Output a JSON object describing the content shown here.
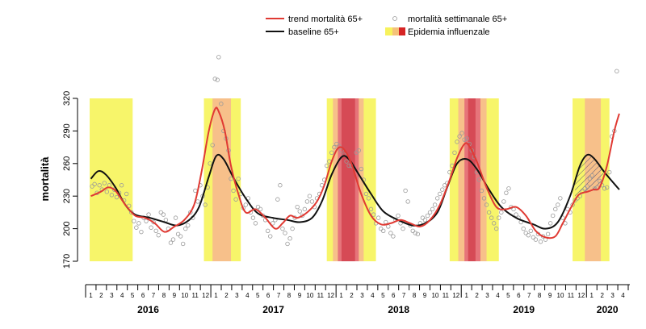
{
  "chart_data": {
    "type": "line",
    "ylabel": "mortalità",
    "ylim": [
      170,
      320
    ],
    "yticks": [
      170,
      200,
      230,
      260,
      290,
      320
    ],
    "x_axis": {
      "start": "2015-12",
      "months": [
        "1",
        "2",
        "3",
        "4",
        "5",
        "6",
        "7",
        "8",
        "9",
        "10",
        "11",
        "12"
      ],
      "years": [
        "2016",
        "2017",
        "2018",
        "2019",
        "2020"
      ],
      "last_partial_months": [
        "1",
        "2",
        "3",
        "4"
      ]
    },
    "legend": {
      "position": "top",
      "entries": [
        {
          "key": "trend",
          "label": "trend mortalità 65+",
          "color": "#e03a33",
          "kind": "line"
        },
        {
          "key": "obs",
          "label": "mortalità settimanale 65+",
          "color": "#9a9a9a",
          "kind": "circle"
        },
        {
          "key": "baseline",
          "label": "baseline 65+",
          "color": "#111111",
          "kind": "line"
        },
        {
          "key": "epidemic",
          "label": "Epidemia influenzale",
          "colors": [
            "#f7f25c",
            "#f5c27a",
            "#d62424"
          ],
          "kind": "swatch"
        }
      ]
    },
    "colors": {
      "trend": "#e03a33",
      "baseline": "#111111",
      "points": "#9a9a9a",
      "epi_low": "#f7f56a",
      "epi_mid": "#f7c08a",
      "epi_high": "#e6747a",
      "epi_peak": "#d64a55",
      "hatch": "#555577"
    },
    "epidemic_periods": [
      {
        "season": "2015-16",
        "yellow": [
          2015.95,
          2016.3
        ]
      },
      {
        "season": "2016-17",
        "yellow": [
          2016.88,
          2017.18
        ],
        "orange": [
          2016.95,
          2017.1
        ]
      },
      {
        "season": "2017-18",
        "yellow": [
          2017.88,
          2018.28
        ],
        "orange": [
          2017.93,
          2018.18
        ],
        "red": [
          2017.97,
          2018.14
        ],
        "peak": [
          2018.0,
          2018.11
        ]
      },
      {
        "season": "2018-19",
        "yellow": [
          2018.88,
          2019.28
        ],
        "orange": [
          2018.95,
          2019.18
        ],
        "red": [
          2019.0,
          2019.13
        ],
        "peak": [
          2019.03,
          2019.09
        ]
      },
      {
        "season": "2019-20",
        "yellow": [
          2019.88,
          2020.18
        ],
        "orange": [
          2019.98,
          2020.11
        ]
      }
    ],
    "series": [
      {
        "name": "trend mortalità 65+",
        "key": "trend",
        "x": [
          2015.96,
          2016.04,
          2016.1,
          2016.16,
          2016.24,
          2016.32,
          2016.4,
          2016.48,
          2016.56,
          2016.64,
          2016.72,
          2016.8,
          2016.86,
          2016.92,
          2016.97,
          2017.0,
          2017.05,
          2017.1,
          2017.16,
          2017.22,
          2017.3,
          2017.38,
          2017.46,
          2017.52,
          2017.58,
          2017.64,
          2017.72,
          2017.8,
          2017.86,
          2017.92,
          2017.97,
          2018.02,
          2018.08,
          2018.16,
          2018.24,
          2018.32,
          2018.4,
          2018.48,
          2018.56,
          2018.64,
          2018.72,
          2018.8,
          2018.88,
          2018.94,
          2019.0,
          2019.04,
          2019.1,
          2019.18,
          2019.26,
          2019.34,
          2019.42,
          2019.5,
          2019.58,
          2019.66,
          2019.74,
          2019.8,
          2019.86,
          2019.92,
          2019.96,
          2020.0,
          2020.05,
          2020.1,
          2020.16,
          2020.22,
          2020.26
        ],
        "y": [
          230,
          234,
          238,
          235,
          222,
          212,
          210,
          205,
          197,
          202,
          208,
          222,
          252,
          290,
          310,
          308,
          290,
          258,
          232,
          215,
          218,
          210,
          200,
          205,
          212,
          210,
          215,
          225,
          240,
          262,
          274,
          273,
          260,
          232,
          212,
          204,
          205,
          208,
          205,
          202,
          208,
          222,
          245,
          265,
          278,
          276,
          262,
          238,
          220,
          218,
          220,
          212,
          198,
          192,
          193,
          205,
          218,
          230,
          233,
          234,
          236,
          238,
          258,
          290,
          306
        ]
      },
      {
        "name": "baseline 65+",
        "key": "baseline",
        "x": [
          2015.96,
          2016.02,
          2016.08,
          2016.16,
          2016.24,
          2016.32,
          2016.44,
          2016.56,
          2016.66,
          2016.76,
          2016.84,
          2016.92,
          2016.98,
          2017.04,
          2017.12,
          2017.22,
          2017.32,
          2017.44,
          2017.56,
          2017.66,
          2017.76,
          2017.84,
          2017.92,
          2018.0,
          2018.06,
          2018.14,
          2018.24,
          2018.34,
          2018.46,
          2018.58,
          2018.68,
          2018.78,
          2018.86,
          2018.94,
          2019.02,
          2019.1,
          2019.2,
          2019.3,
          2019.42,
          2019.56,
          2019.66,
          2019.76,
          2019.86,
          2019.94,
          2020.0,
          2020.06,
          2020.14,
          2020.26
        ],
        "y": [
          246,
          253,
          250,
          238,
          222,
          213,
          210,
          206,
          203,
          208,
          220,
          248,
          267,
          264,
          247,
          228,
          214,
          210,
          208,
          206,
          210,
          225,
          250,
          266,
          264,
          250,
          232,
          216,
          208,
          203,
          205,
          215,
          238,
          260,
          264,
          255,
          236,
          220,
          210,
          204,
          200,
          206,
          230,
          258,
          268,
          264,
          252,
          236
        ]
      }
    ],
    "weekly_observations": {
      "name": "mortalità settimanale 65+",
      "points": [
        [
          2015.97,
          239
        ],
        [
          2015.99,
          241
        ],
        [
          2016.01,
          233
        ],
        [
          2016.03,
          240
        ],
        [
          2016.05,
          236
        ],
        [
          2016.07,
          242
        ],
        [
          2016.09,
          234
        ],
        [
          2016.11,
          240
        ],
        [
          2016.13,
          231
        ],
        [
          2016.15,
          236
        ],
        [
          2016.17,
          229
        ],
        [
          2016.19,
          233
        ],
        [
          2016.21,
          240
        ],
        [
          2016.23,
          226
        ],
        [
          2016.25,
          232
        ],
        [
          2016.27,
          221
        ],
        [
          2016.29,
          215
        ],
        [
          2016.31,
          207
        ],
        [
          2016.33,
          201
        ],
        [
          2016.35,
          205
        ],
        [
          2016.37,
          197
        ],
        [
          2016.39,
          210
        ],
        [
          2016.41,
          207
        ],
        [
          2016.43,
          213
        ],
        [
          2016.45,
          201
        ],
        [
          2016.47,
          206
        ],
        [
          2016.49,
          198
        ],
        [
          2016.51,
          194
        ],
        [
          2016.53,
          215
        ],
        [
          2016.55,
          213
        ],
        [
          2016.57,
          208
        ],
        [
          2016.59,
          200
        ],
        [
          2016.61,
          187
        ],
        [
          2016.63,
          190
        ],
        [
          2016.65,
          210
        ],
        [
          2016.67,
          195
        ],
        [
          2016.69,
          193
        ],
        [
          2016.71,
          186
        ],
        [
          2016.73,
          200
        ],
        [
          2016.75,
          203
        ],
        [
          2016.77,
          215
        ],
        [
          2016.79,
          210
        ],
        [
          2016.81,
          235
        ],
        [
          2016.83,
          225
        ],
        [
          2016.85,
          240
        ],
        [
          2016.87,
          230
        ],
        [
          2016.89,
          222
        ],
        [
          2016.91,
          238
        ],
        [
          2016.93,
          260
        ],
        [
          2016.95,
          277
        ],
        [
          2016.97,
          338
        ],
        [
          2016.99,
          337
        ],
        [
          2017.0,
          358
        ],
        [
          2017.02,
          315
        ],
        [
          2017.04,
          290
        ],
        [
          2017.06,
          283
        ],
        [
          2017.08,
          272
        ],
        [
          2017.1,
          246
        ],
        [
          2017.12,
          235
        ],
        [
          2017.14,
          227
        ],
        [
          2017.16,
          246
        ],
        [
          2017.18,
          232
        ],
        [
          2017.2,
          219
        ],
        [
          2017.22,
          222
        ],
        [
          2017.24,
          228
        ],
        [
          2017.26,
          215
        ],
        [
          2017.28,
          210
        ],
        [
          2017.3,
          205
        ],
        [
          2017.32,
          220
        ],
        [
          2017.34,
          218
        ],
        [
          2017.36,
          212
        ],
        [
          2017.38,
          208
        ],
        [
          2017.4,
          198
        ],
        [
          2017.42,
          193
        ],
        [
          2017.44,
          205
        ],
        [
          2017.46,
          208
        ],
        [
          2017.48,
          227
        ],
        [
          2017.5,
          240
        ],
        [
          2017.52,
          200
        ],
        [
          2017.54,
          196
        ],
        [
          2017.56,
          186
        ],
        [
          2017.58,
          191
        ],
        [
          2017.6,
          200
        ],
        [
          2017.62,
          210
        ],
        [
          2017.64,
          220
        ],
        [
          2017.66,
          216
        ],
        [
          2017.68,
          212
        ],
        [
          2017.7,
          218
        ],
        [
          2017.72,
          225
        ],
        [
          2017.74,
          230
        ],
        [
          2017.76,
          225
        ],
        [
          2017.78,
          220
        ],
        [
          2017.8,
          228
        ],
        [
          2017.82,
          232
        ],
        [
          2017.84,
          240
        ],
        [
          2017.86,
          245
        ],
        [
          2017.88,
          258
        ],
        [
          2017.9,
          262
        ],
        [
          2017.92,
          270
        ],
        [
          2017.94,
          275
        ],
        [
          2017.96,
          278
        ],
        [
          2017.98,
          276
        ],
        [
          2018.0,
          272
        ],
        [
          2018.02,
          268
        ],
        [
          2018.04,
          262
        ],
        [
          2018.06,
          258
        ],
        [
          2018.08,
          258
        ],
        [
          2018.1,
          256
        ],
        [
          2018.12,
          270
        ],
        [
          2018.14,
          272
        ],
        [
          2018.16,
          255
        ],
        [
          2018.18,
          245
        ],
        [
          2018.2,
          232
        ],
        [
          2018.22,
          228
        ],
        [
          2018.24,
          218
        ],
        [
          2018.26,
          213
        ],
        [
          2018.28,
          205
        ],
        [
          2018.3,
          210
        ],
        [
          2018.32,
          200
        ],
        [
          2018.34,
          198
        ],
        [
          2018.36,
          206
        ],
        [
          2018.38,
          202
        ],
        [
          2018.4,
          196
        ],
        [
          2018.42,
          193
        ],
        [
          2018.44,
          208
        ],
        [
          2018.46,
          212
        ],
        [
          2018.48,
          205
        ],
        [
          2018.5,
          200
        ],
        [
          2018.52,
          235
        ],
        [
          2018.54,
          225
        ],
        [
          2018.56,
          203
        ],
        [
          2018.58,
          198
        ],
        [
          2018.6,
          196
        ],
        [
          2018.62,
          195
        ],
        [
          2018.64,
          205
        ],
        [
          2018.66,
          210
        ],
        [
          2018.68,
          208
        ],
        [
          2018.7,
          212
        ],
        [
          2018.72,
          215
        ],
        [
          2018.74,
          218
        ],
        [
          2018.76,
          222
        ],
        [
          2018.78,
          228
        ],
        [
          2018.8,
          232
        ],
        [
          2018.82,
          236
        ],
        [
          2018.84,
          240
        ],
        [
          2018.86,
          242
        ],
        [
          2018.88,
          252
        ],
        [
          2018.9,
          258
        ],
        [
          2018.92,
          270
        ],
        [
          2018.94,
          280
        ],
        [
          2018.96,
          285
        ],
        [
          2018.98,
          288
        ],
        [
          2019.0,
          282
        ],
        [
          2019.02,
          283
        ],
        [
          2019.04,
          278
        ],
        [
          2019.06,
          272
        ],
        [
          2019.08,
          266
        ],
        [
          2019.1,
          252
        ],
        [
          2019.12,
          245
        ],
        [
          2019.14,
          235
        ],
        [
          2019.16,
          228
        ],
        [
          2019.18,
          222
        ],
        [
          2019.2,
          215
        ],
        [
          2019.22,
          210
        ],
        [
          2019.24,
          205
        ],
        [
          2019.26,
          200
        ],
        [
          2019.28,
          210
        ],
        [
          2019.3,
          215
        ],
        [
          2019.32,
          225
        ],
        [
          2019.34,
          233
        ],
        [
          2019.36,
          237
        ],
        [
          2019.38,
          220
        ],
        [
          2019.4,
          218
        ],
        [
          2019.42,
          213
        ],
        [
          2019.44,
          210
        ],
        [
          2019.46,
          206
        ],
        [
          2019.48,
          200
        ],
        [
          2019.5,
          196
        ],
        [
          2019.52,
          194
        ],
        [
          2019.54,
          198
        ],
        [
          2019.56,
          192
        ],
        [
          2019.58,
          190
        ],
        [
          2019.6,
          195
        ],
        [
          2019.62,
          188
        ],
        [
          2019.64,
          193
        ],
        [
          2019.66,
          190
        ],
        [
          2019.68,
          195
        ],
        [
          2019.7,
          205
        ],
        [
          2019.72,
          212
        ],
        [
          2019.74,
          218
        ],
        [
          2019.76,
          222
        ],
        [
          2019.78,
          228
        ],
        [
          2019.8,
          210
        ],
        [
          2019.82,
          205
        ],
        [
          2019.84,
          218
        ],
        [
          2019.86,
          215
        ],
        [
          2019.88,
          222
        ],
        [
          2019.9,
          226
        ],
        [
          2019.92,
          228
        ],
        [
          2019.94,
          230
        ],
        [
          2019.96,
          234
        ],
        [
          2019.98,
          237
        ],
        [
          2020.0,
          239
        ],
        [
          2020.02,
          246
        ],
        [
          2020.04,
          249
        ],
        [
          2020.06,
          237
        ],
        [
          2020.08,
          238
        ],
        [
          2020.1,
          244
        ],
        [
          2020.12,
          240
        ],
        [
          2020.14,
          237
        ],
        [
          2020.16,
          238
        ],
        [
          2020.18,
          252
        ],
        [
          2020.2,
          285
        ],
        [
          2020.22,
          290
        ],
        [
          2020.24,
          345
        ]
      ]
    }
  }
}
